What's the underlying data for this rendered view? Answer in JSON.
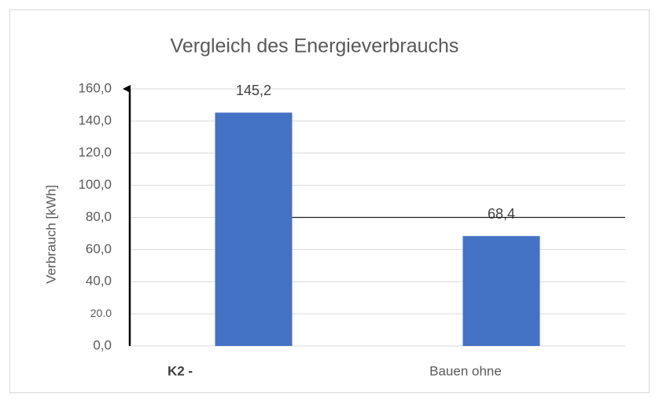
{
  "chart_data": {
    "type": "bar",
    "title": "Vergleich des Energieverbrauchs",
    "y_label": "Verbrauch [kWh]",
    "categories": [
      "K2 -",
      "Bauen ohne"
    ],
    "values": [
      145.2,
      68.4
    ],
    "value_labels": [
      "145,2",
      "68,4"
    ],
    "color": "#4472c4",
    "ylim": [
      0,
      160
    ],
    "yticks": [
      {
        "value": 0,
        "label": "0,0"
      },
      {
        "value": 20,
        "label": "20.0"
      },
      {
        "value": 40,
        "label": "40,0"
      },
      {
        "value": 60,
        "label": "60,0"
      },
      {
        "value": 80,
        "label": "80,0"
      },
      {
        "value": 100,
        "label": "100,0"
      },
      {
        "value": 120,
        "label": "120,0"
      },
      {
        "value": 140,
        "label": "140,0"
      },
      {
        "value": 160,
        "label": "160,0"
      }
    ],
    "grid": true,
    "reference_line": 80
  }
}
